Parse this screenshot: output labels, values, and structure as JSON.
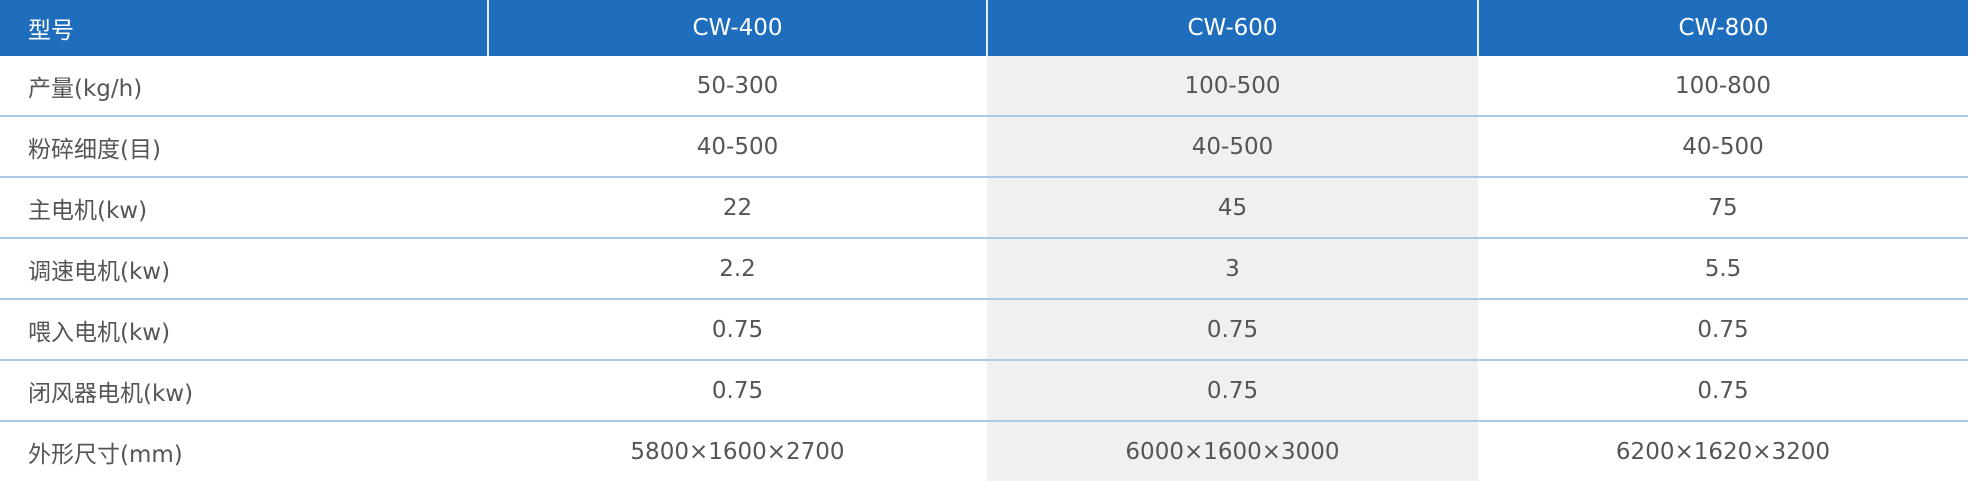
{
  "table": {
    "header": [
      "型号",
      "CW-400",
      "CW-600",
      "CW-800"
    ],
    "rows": [
      [
        "产量(kg/h)",
        "50-300",
        "100-500",
        "100-800"
      ],
      [
        "粉碎细度(目)",
        "40-500",
        "40-500",
        "40-500"
      ],
      [
        "主电机(kw)",
        "22",
        "45",
        "75"
      ],
      [
        "调速电机(kw)",
        "2.2",
        "3",
        "5.5"
      ],
      [
        "喂入电机(kw)",
        "0.75",
        "0.75",
        "0.75"
      ],
      [
        "闭风器电机(kw)",
        "0.75",
        "0.75",
        "0.75"
      ],
      [
        "外形尺寸(mm)",
        "5800×1600×2700",
        "6000×1600×3000",
        "6200×1620×3200"
      ]
    ]
  }
}
